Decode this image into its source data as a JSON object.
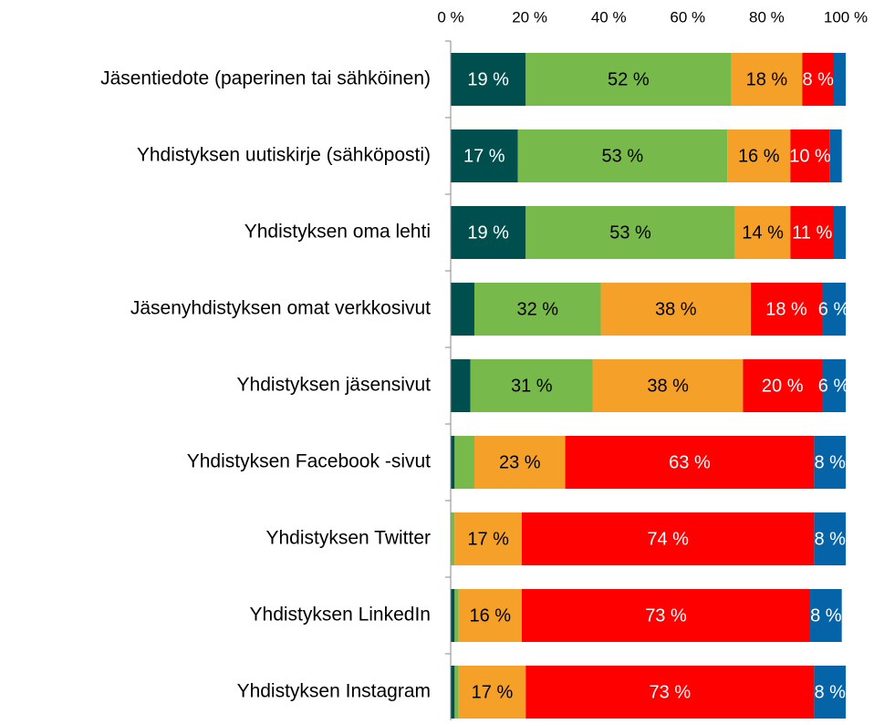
{
  "chart_data": {
    "type": "bar",
    "orientation": "horizontal",
    "stacked": true,
    "categories": [
      "Jäsentiedote (paperinen tai sähköinen)",
      "Yhdistyksen uutiskirje (sähköposti)",
      "Yhdistyksen oma lehti",
      "Jäsenyhdistyksen omat verkkosivut",
      "Yhdistyksen jäsensivut",
      "Yhdistyksen Facebook -sivut",
      "Yhdistyksen Twitter",
      "Yhdistyksen LinkedIn",
      "Yhdistyksen Instagram"
    ],
    "xlim": [
      0,
      100
    ],
    "xticks": [
      {
        "value": 0,
        "label": "0 %"
      },
      {
        "value": 20,
        "label": "20 %"
      },
      {
        "value": 40,
        "label": "40 %"
      },
      {
        "value": 60,
        "label": "60 %"
      },
      {
        "value": 80,
        "label": "80 %"
      },
      {
        "value": 100,
        "label": "100 %"
      }
    ],
    "grid": false,
    "series": [
      {
        "color": "#004f4f",
        "label_color": "#ffffff",
        "values": [
          19,
          17,
          19,
          6,
          5,
          1,
          0,
          1,
          1
        ],
        "value_labels": [
          "19 %",
          "17 %",
          "19 %",
          null,
          null,
          null,
          null,
          null,
          null
        ]
      },
      {
        "color": "#77b94b",
        "label_color": "#000000",
        "values": [
          52,
          53,
          53,
          32,
          31,
          5,
          1,
          1,
          1
        ],
        "value_labels": [
          "52 %",
          "53 %",
          "53 %",
          "32 %",
          "31 %",
          null,
          null,
          null,
          null
        ]
      },
      {
        "color": "#f5a028",
        "label_color": "#000000",
        "values": [
          18,
          16,
          14,
          38,
          38,
          23,
          17,
          16,
          17
        ],
        "value_labels": [
          "18 %",
          "16 %",
          "14 %",
          "38 %",
          "38 %",
          "23 %",
          "17 %",
          "16 %",
          "17 %"
        ]
      },
      {
        "color": "#ff0000",
        "label_color": "#ffffff",
        "values": [
          8,
          10,
          11,
          18,
          20,
          63,
          74,
          73,
          73
        ],
        "value_labels": [
          "8 %",
          "10 %",
          "11 %",
          "18 %",
          "20 %",
          "63 %",
          "74 %",
          "73 %",
          "73 %"
        ]
      },
      {
        "color": "#0563a8",
        "label_color": "#ffffff",
        "values": [
          3,
          3,
          3,
          6,
          6,
          8,
          8,
          8,
          8
        ],
        "value_labels": [
          null,
          null,
          null,
          "6 %",
          "6 %",
          "8 %",
          "8 %",
          "8 %",
          "8 %"
        ]
      }
    ]
  }
}
